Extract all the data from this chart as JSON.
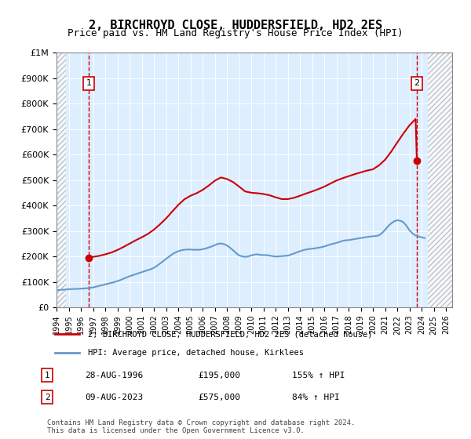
{
  "title": "2, BIRCHROYD CLOSE, HUDDERSFIELD, HD2 2ES",
  "subtitle": "Price paid vs. HM Land Registry's House Price Index (HPI)",
  "ylabel": "",
  "xlabel": "",
  "ylim": [
    0,
    1000000
  ],
  "xlim_start": 1994.0,
  "xlim_end": 2026.5,
  "yticks": [
    0,
    100000,
    200000,
    300000,
    400000,
    500000,
    600000,
    700000,
    800000,
    900000,
    1000000
  ],
  "ytick_labels": [
    "£0",
    "£100K",
    "£200K",
    "£300K",
    "£400K",
    "£500K",
    "£600K",
    "£700K",
    "£800K",
    "£900K",
    "£1M"
  ],
  "xticks": [
    1994,
    1995,
    1996,
    1997,
    1998,
    1999,
    2000,
    2001,
    2002,
    2003,
    2004,
    2005,
    2006,
    2007,
    2008,
    2009,
    2010,
    2011,
    2012,
    2013,
    2014,
    2015,
    2016,
    2017,
    2018,
    2019,
    2020,
    2021,
    2022,
    2023,
    2024,
    2025,
    2026
  ],
  "transaction1_date": 1996.65,
  "transaction1_price": 195000,
  "transaction2_date": 2023.6,
  "transaction2_price": 575000,
  "hpi_color": "#6699cc",
  "price_color": "#cc0000",
  "bg_color": "#ddeeff",
  "plot_bg": "#ddeeff",
  "hatch_color": "#bbbbbb",
  "legend_label1": "2, BIRCHROYD CLOSE, HUDDERSFIELD, HD2 2ES (detached house)",
  "legend_label2": "HPI: Average price, detached house, Kirklees",
  "note1_num": "1",
  "note1_date": "28-AUG-1996",
  "note1_price": "£195,000",
  "note1_hpi": "155% ↑ HPI",
  "note2_num": "2",
  "note2_date": "09-AUG-2023",
  "note2_price": "£575,000",
  "note2_hpi": "84% ↑ HPI",
  "footer": "Contains HM Land Registry data © Crown copyright and database right 2024.\nThis data is licensed under the Open Government Licence v3.0.",
  "hpi_data_x": [
    1994.0,
    1994.25,
    1994.5,
    1994.75,
    1995.0,
    1995.25,
    1995.5,
    1995.75,
    1996.0,
    1996.25,
    1996.5,
    1996.75,
    1997.0,
    1997.25,
    1997.5,
    1997.75,
    1998.0,
    1998.25,
    1998.5,
    1998.75,
    1999.0,
    1999.25,
    1999.5,
    1999.75,
    2000.0,
    2000.25,
    2000.5,
    2000.75,
    2001.0,
    2001.25,
    2001.5,
    2001.75,
    2002.0,
    2002.25,
    2002.5,
    2002.75,
    2003.0,
    2003.25,
    2003.5,
    2003.75,
    2004.0,
    2004.25,
    2004.5,
    2004.75,
    2005.0,
    2005.25,
    2005.5,
    2005.75,
    2006.0,
    2006.25,
    2006.5,
    2006.75,
    2007.0,
    2007.25,
    2007.5,
    2007.75,
    2008.0,
    2008.25,
    2008.5,
    2008.75,
    2009.0,
    2009.25,
    2009.5,
    2009.75,
    2010.0,
    2010.25,
    2010.5,
    2010.75,
    2011.0,
    2011.25,
    2011.5,
    2011.75,
    2012.0,
    2012.25,
    2012.5,
    2012.75,
    2013.0,
    2013.25,
    2013.5,
    2013.75,
    2014.0,
    2014.25,
    2014.5,
    2014.75,
    2015.0,
    2015.25,
    2015.5,
    2015.75,
    2016.0,
    2016.25,
    2016.5,
    2016.75,
    2017.0,
    2017.25,
    2017.5,
    2017.75,
    2018.0,
    2018.25,
    2018.5,
    2018.75,
    2019.0,
    2019.25,
    2019.5,
    2019.75,
    2020.0,
    2020.25,
    2020.5,
    2020.75,
    2021.0,
    2021.25,
    2021.5,
    2021.75,
    2022.0,
    2022.25,
    2022.5,
    2022.75,
    2023.0,
    2023.25,
    2023.5,
    2023.75,
    2024.0,
    2024.25
  ],
  "hpi_data_y": [
    67000,
    68000,
    69000,
    70000,
    71000,
    71500,
    72000,
    72500,
    73000,
    74000,
    75000,
    76500,
    78000,
    81000,
    84000,
    87000,
    90000,
    93000,
    96000,
    99000,
    103000,
    107000,
    112000,
    117000,
    122000,
    126000,
    130000,
    134000,
    138000,
    142000,
    146000,
    150000,
    155000,
    163000,
    172000,
    181000,
    190000,
    199000,
    208000,
    215000,
    220000,
    224000,
    226000,
    227000,
    227000,
    226000,
    226000,
    226000,
    228000,
    231000,
    235000,
    239000,
    244000,
    249000,
    251000,
    248000,
    243000,
    234000,
    224000,
    213000,
    204000,
    200000,
    198000,
    200000,
    204000,
    207000,
    208000,
    206000,
    205000,
    205000,
    203000,
    201000,
    199000,
    200000,
    201000,
    202000,
    203000,
    207000,
    211000,
    216000,
    220000,
    224000,
    227000,
    229000,
    230000,
    232000,
    234000,
    236000,
    239000,
    243000,
    247000,
    250000,
    253000,
    257000,
    261000,
    263000,
    264000,
    266000,
    268000,
    270000,
    272000,
    274000,
    276000,
    278000,
    279000,
    280000,
    283000,
    292000,
    305000,
    319000,
    330000,
    338000,
    342000,
    340000,
    334000,
    320000,
    302000,
    290000,
    282000,
    278000,
    275000,
    272000
  ],
  "price_line_x": [
    1996.5,
    1996.65,
    1996.75,
    1997.0,
    1997.5,
    1998.0,
    1998.5,
    1999.0,
    1999.5,
    2000.0,
    2000.5,
    2001.0,
    2001.5,
    2002.0,
    2002.5,
    2003.0,
    2003.5,
    2004.0,
    2004.5,
    2005.0,
    2005.5,
    2006.0,
    2006.5,
    2007.0,
    2007.5,
    2008.0,
    2008.5,
    2009.0,
    2009.5,
    2010.0,
    2010.5,
    2011.0,
    2011.5,
    2012.0,
    2012.5,
    2013.0,
    2013.5,
    2014.0,
    2014.5,
    2015.0,
    2015.5,
    2016.0,
    2016.5,
    2017.0,
    2017.5,
    2018.0,
    2018.5,
    2019.0,
    2019.5,
    2020.0,
    2020.5,
    2021.0,
    2021.5,
    2022.0,
    2022.5,
    2023.0,
    2023.5,
    2023.6,
    2023.75
  ],
  "price_line_y": [
    195000,
    195000,
    196000,
    198000,
    202000,
    208000,
    215000,
    225000,
    237000,
    250000,
    263000,
    275000,
    288000,
    305000,
    326000,
    349000,
    376000,
    402000,
    424000,
    438000,
    448000,
    461000,
    478000,
    497000,
    510000,
    504000,
    492000,
    474000,
    455000,
    450000,
    448000,
    445000,
    440000,
    432000,
    425000,
    425000,
    430000,
    438000,
    447000,
    455000,
    464000,
    474000,
    486000,
    498000,
    507000,
    515000,
    523000,
    530000,
    537000,
    542000,
    558000,
    580000,
    612000,
    648000,
    683000,
    715000,
    740000,
    575000,
    570000
  ]
}
